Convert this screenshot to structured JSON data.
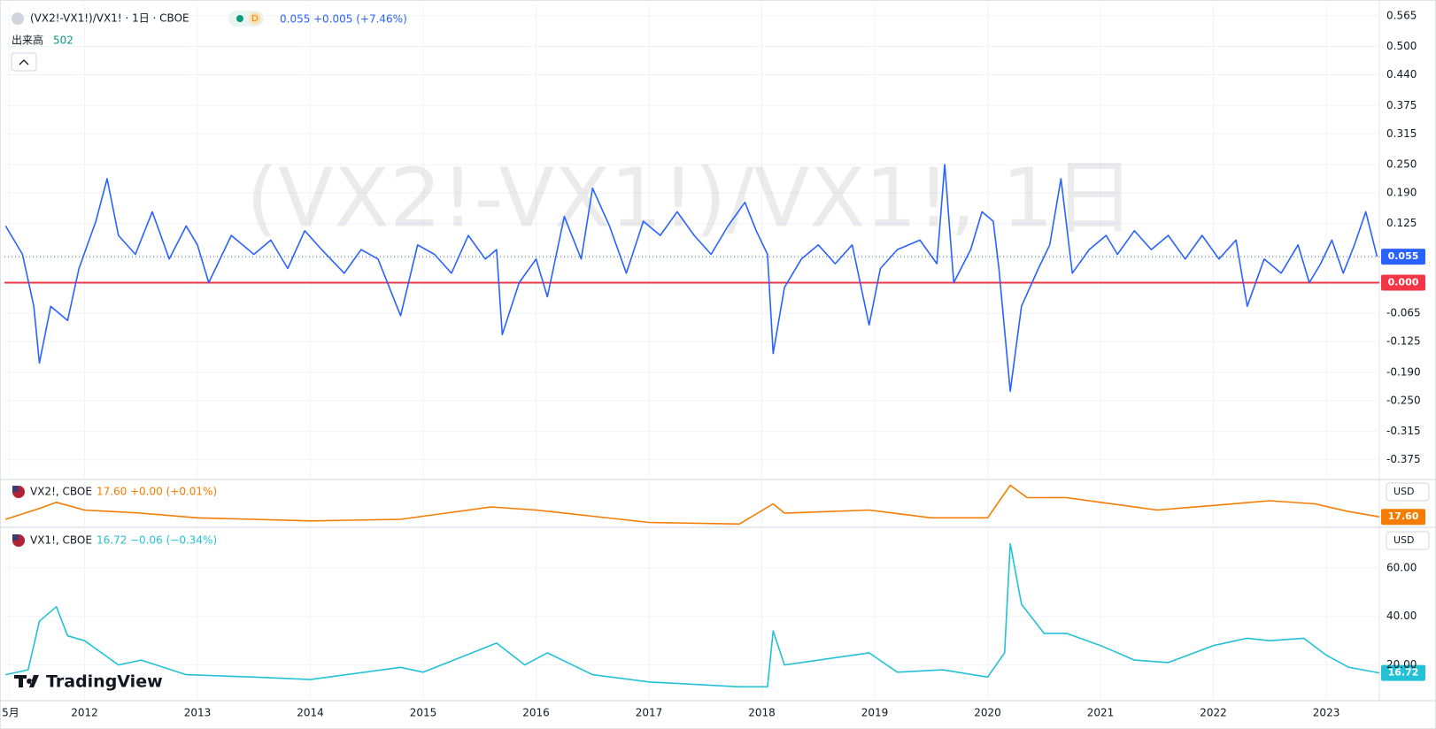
{
  "chart_data": [
    {
      "type": "line",
      "series": [
        {
          "name": "(VX2!-VX1!)/VX1! · 1日 · CBOE",
          "color": "#2962ff",
          "values": [
            0.12,
            0.06,
            -0.05,
            -0.17,
            -0.05,
            -0.08,
            0.03,
            0.13,
            0.22,
            0.1,
            0.06,
            0.15,
            0.05,
            0.12,
            0.08,
            0.0,
            0.1,
            0.06,
            0.09,
            0.03,
            0.11,
            0.07,
            0.02,
            0.07,
            0.05,
            -0.07,
            0.08,
            0.06,
            0.02,
            0.1,
            0.05,
            0.07,
            -0.11,
            0.0,
            0.05,
            -0.03,
            0.14,
            0.05,
            0.2,
            0.12,
            0.02,
            0.13,
            0.1,
            0.15,
            0.1,
            0.06,
            0.12,
            0.17,
            0.11,
            0.06,
            -0.15,
            -0.01,
            0.05,
            0.08,
            0.04,
            0.08,
            -0.09,
            0.03,
            0.07,
            0.09,
            0.04,
            0.25,
            0.0,
            0.07,
            0.15,
            0.13,
            0.03,
            -0.23,
            -0.05,
            0.03,
            0.08,
            0.22,
            0.02,
            0.07,
            0.1,
            0.06,
            0.11,
            0.07,
            0.1,
            0.05,
            0.1,
            0.05,
            0.09,
            -0.05,
            0.05,
            0.02,
            0.08,
            0.0,
            0.04,
            0.09,
            0.02,
            0.08,
            0.15,
            0.055
          ]
        }
      ],
      "x": [
        2011.3,
        2011.45,
        2011.55,
        2011.6,
        2011.7,
        2011.85,
        2011.95,
        2012.1,
        2012.2,
        2012.3,
        2012.45,
        2012.6,
        2012.75,
        2012.9,
        2013.0,
        2013.1,
        2013.3,
        2013.5,
        2013.65,
        2013.8,
        2013.95,
        2014.1,
        2014.3,
        2014.45,
        2014.6,
        2014.8,
        2014.95,
        2015.1,
        2015.25,
        2015.4,
        2015.55,
        2015.65,
        2015.7,
        2015.85,
        2016.0,
        2016.1,
        2016.25,
        2016.4,
        2016.5,
        2016.65,
        2016.8,
        2016.95,
        2017.1,
        2017.25,
        2017.4,
        2017.55,
        2017.7,
        2017.85,
        2017.95,
        2018.05,
        2018.1,
        2018.2,
        2018.35,
        2018.5,
        2018.65,
        2018.8,
        2018.95,
        2019.05,
        2019.2,
        2019.4,
        2019.55,
        2019.62,
        2019.7,
        2019.85,
        2019.95,
        2020.05,
        2020.1,
        2020.2,
        2020.3,
        2020.45,
        2020.55,
        2020.65,
        2020.75,
        2020.9,
        2021.05,
        2021.15,
        2021.3,
        2021.45,
        2021.6,
        2021.75,
        2021.9,
        2022.05,
        2022.2,
        2022.3,
        2022.45,
        2022.6,
        2022.75,
        2022.85,
        2022.95,
        2023.05,
        2023.15,
        2023.25,
        2023.35,
        2023.45
      ],
      "xlim": [
        2011.29,
        2023.47
      ],
      "ylim": [
        -0.413,
        0.589
      ],
      "yticks": [
        0.565,
        {
          "value": 0.5,
          "label": "0.500"
        },
        {
          "value": 0.44,
          "label": "0.440"
        },
        0.375,
        0.315,
        {
          "value": 0.25,
          "label": "0.250"
        },
        {
          "value": 0.19,
          "label": "0.190"
        },
        0.125,
        -0.065,
        -0.125,
        {
          "value": -0.19,
          "label": "-0.190"
        },
        {
          "value": -0.25,
          "label": "-0.250"
        },
        -0.315,
        -0.375
      ],
      "grid": true,
      "last_label": "0.055",
      "change": "+0.005 (+7.46%)",
      "interval_badge": "D",
      "hline": {
        "value": 0,
        "label": "0.000",
        "color": "#f23645"
      },
      "volume": {
        "name": "出来高",
        "value": 502
      },
      "watermark": "(VX2!-VX1!)/VX1!, 1日"
    },
    {
      "type": "line",
      "series": [
        {
          "name": "VX2!, CBOE",
          "color": "#f57c00",
          "values": [
            16,
            23,
            27,
            22,
            20,
            17,
            16,
            15,
            16,
            24,
            22,
            18,
            14,
            13,
            26,
            20,
            22,
            17,
            17,
            38,
            30,
            30,
            27,
            22,
            25,
            28,
            26,
            21,
            17.6
          ]
        }
      ],
      "x": [
        2011.3,
        2011.6,
        2011.75,
        2012.0,
        2012.5,
        2013.0,
        2013.5,
        2014.0,
        2014.8,
        2015.6,
        2016.0,
        2016.5,
        2017.0,
        2017.8,
        2018.1,
        2018.2,
        2018.95,
        2019.5,
        2020.0,
        2020.2,
        2020.35,
        2020.7,
        2021.0,
        2021.5,
        2022.0,
        2022.5,
        2022.9,
        2023.2,
        2023.47
      ],
      "xlim": [
        2011.29,
        2023.47
      ],
      "ylim": [
        12,
        40
      ],
      "last_label": "17.60",
      "change": "+0.00 (+0.01%)",
      "currency": "USD"
    },
    {
      "type": "line",
      "series": [
        {
          "name": "VX1!, CBOE",
          "color": "#22c1d6",
          "values": [
            16,
            18,
            38,
            44,
            32,
            30,
            20,
            22,
            16,
            15,
            14,
            19,
            17,
            29,
            20,
            25,
            16,
            13,
            11,
            11,
            34,
            20,
            25,
            17,
            18,
            15,
            25,
            70,
            45,
            33,
            33,
            28,
            22,
            21,
            28,
            31,
            30,
            31,
            24,
            19,
            16.72
          ]
        }
      ],
      "x": [
        2011.3,
        2011.5,
        2011.6,
        2011.75,
        2011.85,
        2012.0,
        2012.3,
        2012.5,
        2012.9,
        2013.5,
        2014.0,
        2014.8,
        2015.0,
        2015.65,
        2015.9,
        2016.1,
        2016.5,
        2017.0,
        2017.8,
        2018.05,
        2018.1,
        2018.2,
        2018.95,
        2019.2,
        2019.6,
        2020.0,
        2020.15,
        2020.2,
        2020.3,
        2020.5,
        2020.7,
        2021.0,
        2021.3,
        2021.6,
        2022.0,
        2022.3,
        2022.5,
        2022.8,
        2023.0,
        2023.2,
        2023.47
      ],
      "xlim": [
        2011.29,
        2023.47
      ],
      "ylim": [
        6,
        76
      ],
      "yticks": [
        {
          "value": 20,
          "label": "20.00"
        },
        {
          "value": 40,
          "label": "40.00"
        },
        {
          "value": 60,
          "label": "60.00"
        }
      ],
      "grid": true,
      "last_label": "16.72",
      "change": "−0.06 (−0.34%)",
      "currency": "USD",
      "xticks": [
        {
          "value": 2011.33,
          "label": "5月"
        },
        2012,
        2013,
        2014,
        2015,
        2016,
        2017,
        2018,
        2019,
        2020,
        2021,
        2022,
        2023
      ]
    }
  ],
  "brand": "TradingView"
}
